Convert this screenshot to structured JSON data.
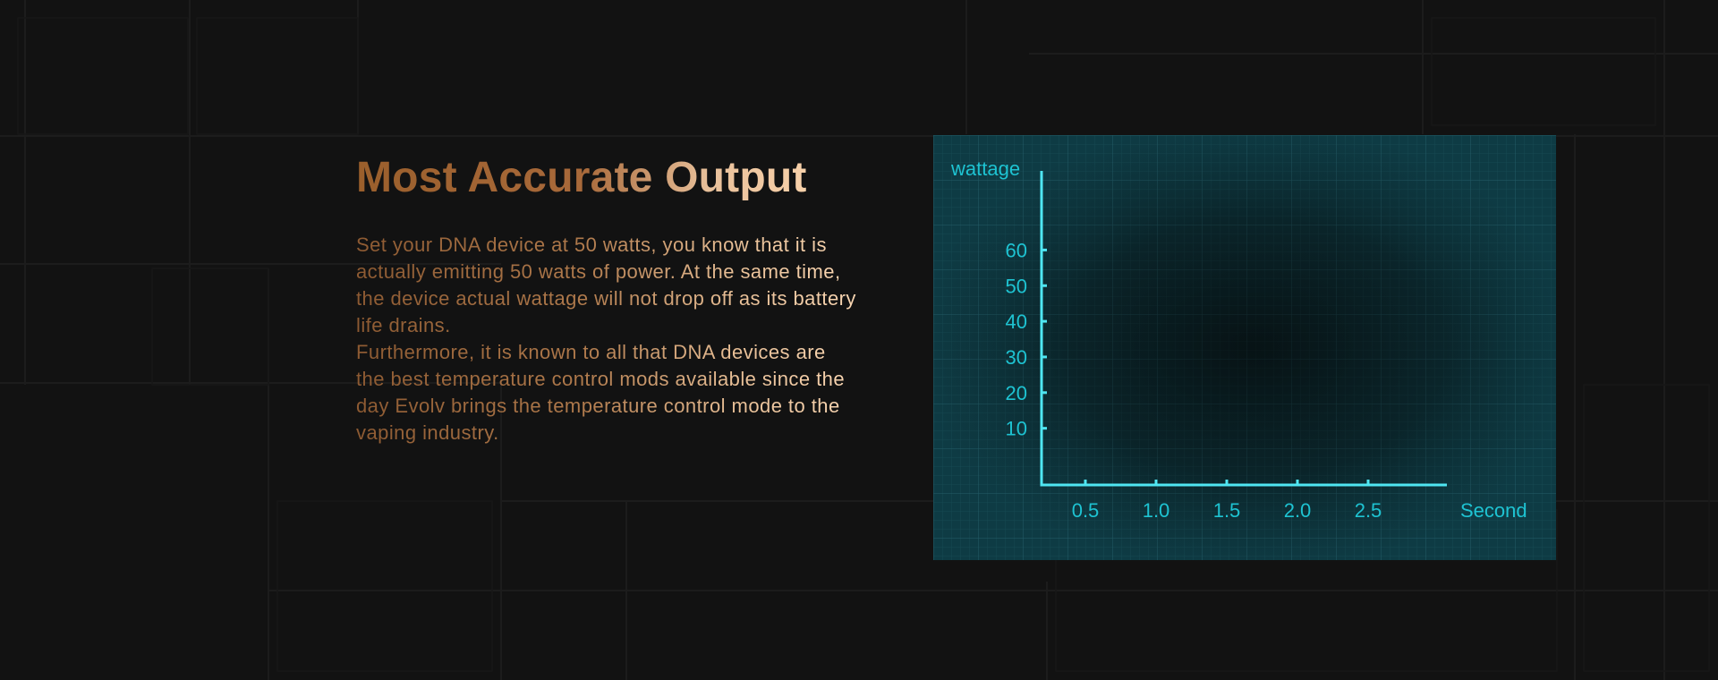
{
  "section": {
    "title": "Most Accurate Output",
    "paragraphs": [
      "Set your DNA device at 50 watts, you know that it is actually emitting 50 watts of power. At the same time, the device actual wattage will not drop off as its battery life drains.",
      "Furthermore, it is known to all that DNA devices are the best temperature control mods available since the day Evolv brings the temperature control mode to the vaping industry."
    ]
  },
  "colors": {
    "background": "#121212",
    "title_start": "#9a5f2c",
    "title_end": "#ffd9b2",
    "chart_panel": "#0e3b44",
    "chart_axis": "#4fe6f2",
    "chart_text": "#1ec3d2"
  },
  "chart_data": {
    "type": "line",
    "xlabel": "Second",
    "ylabel": "wattage",
    "x_ticks": [
      "0.5",
      "1.0",
      "1.5",
      "2.0",
      "2.5"
    ],
    "y_ticks": [
      "10",
      "20",
      "30",
      "40",
      "50",
      "60"
    ],
    "series": [],
    "grid": true
  }
}
